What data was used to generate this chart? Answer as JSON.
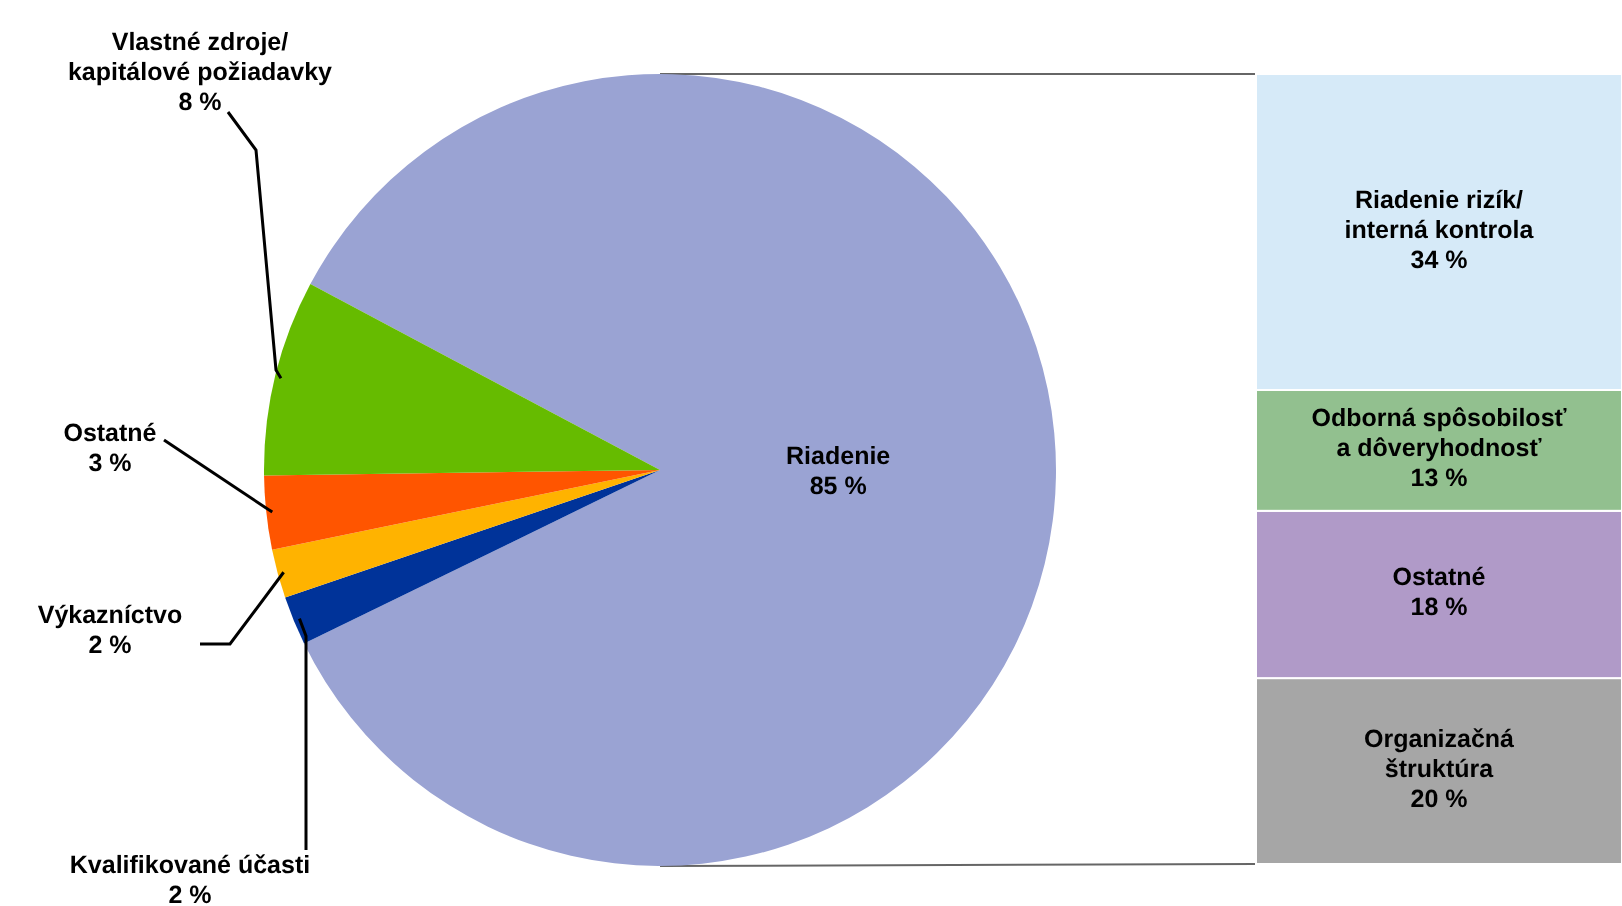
{
  "chart_data": [
    {
      "type": "pie",
      "categories": [
        "Riadenie",
        "Kvalifikované účasti",
        "Výkazníctvo",
        "Ostatné",
        "Vlastné zdroje/ kapitálové požiadavky"
      ],
      "values": [
        85,
        2,
        2,
        3,
        8
      ],
      "colors": [
        "#9aa3d3",
        "#003399",
        "#ffb300",
        "#ff5500",
        "#66bb00"
      ],
      "value_labels": [
        "85 %",
        "2 %",
        "2 %",
        "3 %",
        "8 %"
      ]
    },
    {
      "type": "bar",
      "stacked": true,
      "categories": [
        null
      ],
      "series": [
        {
          "name": "Organizačná štruktúra",
          "color": "#a6a6a6",
          "values": [
            20
          ],
          "value_labels": [
            "20 %"
          ]
        },
        {
          "name": "Ostatné",
          "color": "#b09ac8",
          "values": [
            18
          ],
          "value_labels": [
            "18 %"
          ]
        },
        {
          "name": "Odborná spôsobilosť a dôveryhodnosť",
          "color": "#92c08f",
          "values": [
            13
          ],
          "value_labels": [
            "13 %"
          ]
        },
        {
          "name": "Riadenie rizík/ interná kontrola",
          "color": "#d6eaf8",
          "values": [
            34
          ],
          "value_labels": [
            "34 %"
          ]
        }
      ]
    }
  ]
}
